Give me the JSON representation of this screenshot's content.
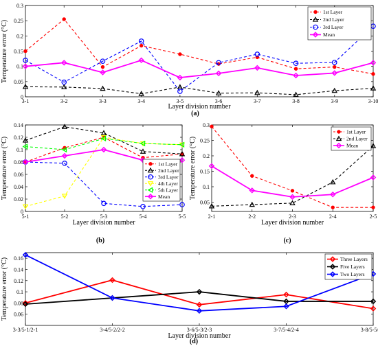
{
  "panel_labels": [
    "(a)",
    "(b)",
    "(c)",
    "(d)"
  ],
  "chart_data": [
    {
      "type": "line",
      "panel": "(a)",
      "xlabel": "Layer division number",
      "ylabel": "Temperature error (°C)",
      "categories": [
        "3-1",
        "3-2",
        "3-3",
        "3-4",
        "3-5",
        "3-6",
        "3-7",
        "3-8",
        "3-9",
        "3-10"
      ],
      "ylim": [
        0,
        0.3
      ],
      "yticks": [
        "0",
        "0.05",
        "0.1",
        "0.15",
        "0.2",
        "0.25",
        "0.3"
      ],
      "grid": false,
      "legend_position": "top-right",
      "series": [
        {
          "name": "1st Layer",
          "color": "#ff0000",
          "dash": "dashed",
          "marker": "dot",
          "values": [
            0.15,
            0.255,
            0.098,
            0.168,
            0.14,
            0.108,
            0.13,
            0.092,
            0.098,
            0.075
          ]
        },
        {
          "name": "2nd Layer",
          "color": "#000000",
          "dash": "dashed",
          "marker": "triangle",
          "values": [
            0.033,
            0.032,
            0.027,
            0.01,
            0.032,
            0.012,
            0.013,
            0.007,
            0.02,
            0.028
          ]
        },
        {
          "name": "3rd Layer",
          "color": "#0000ff",
          "dash": "dashed",
          "marker": "circle",
          "values": [
            0.12,
            0.048,
            0.117,
            0.183,
            0.018,
            0.112,
            0.14,
            0.11,
            0.113,
            0.232
          ]
        },
        {
          "name": "Mean",
          "color": "#ff00ff",
          "dash": "solid",
          "marker": "diamond",
          "values": [
            0.1,
            0.112,
            0.08,
            0.12,
            0.063,
            0.077,
            0.095,
            0.07,
            0.078,
            0.112
          ]
        }
      ]
    },
    {
      "type": "line",
      "panel": "(b)",
      "xlabel": "Layer division number",
      "ylabel": "Temperature error (°C)",
      "categories": [
        "5-1",
        "5-2",
        "5-3",
        "5-4",
        "5-5"
      ],
      "ylim": [
        0,
        0.14
      ],
      "yticks": [
        "0",
        "0.02",
        "0.04",
        "0.06",
        "0.08",
        "0.1",
        "0.12",
        "0.14"
      ],
      "grid": false,
      "legend_position": "right",
      "series": [
        {
          "name": "1st Layer",
          "color": "#ff0000",
          "dash": "dashed",
          "marker": "dot",
          "values": [
            0.08,
            0.103,
            0.12,
            0.087,
            0.093
          ]
        },
        {
          "name": "2nd Layer",
          "color": "#000000",
          "dash": "dashed",
          "marker": "triangle",
          "values": [
            0.115,
            0.137,
            0.127,
            0.097,
            0.093
          ]
        },
        {
          "name": "3rd Layer",
          "color": "#0000ff",
          "dash": "dashed",
          "marker": "circle",
          "values": [
            0.08,
            0.078,
            0.013,
            0.008,
            0.011
          ]
        },
        {
          "name": "4th Layer",
          "color": "#ffff00",
          "dash": "dashed",
          "marker": "triangle-down",
          "values": [
            0.008,
            0.025,
            0.12,
            0.11,
            0.108
          ]
        },
        {
          "name": "5th Layer",
          "color": "#00ff00",
          "dash": "dashed",
          "marker": "triangle-left",
          "values": [
            0.105,
            0.1,
            0.118,
            0.11,
            0.108
          ]
        },
        {
          "name": "Mean",
          "color": "#ff00ff",
          "dash": "solid",
          "marker": "diamond",
          "values": [
            0.08,
            0.09,
            0.1,
            0.083,
            0.083
          ]
        }
      ]
    },
    {
      "type": "line",
      "panel": "(c)",
      "xlabel": "Layer division number",
      "ylabel": "Temperature error (°C)",
      "categories": [
        "2-1",
        "2-2",
        "2-3",
        "2-4",
        "2-5"
      ],
      "ylim": [
        0.02,
        0.3
      ],
      "yticks": [
        "0.05",
        "0.1",
        "0.15",
        "0.2",
        "0.25",
        "0.3"
      ],
      "grid": false,
      "legend_position": "top-right",
      "series": [
        {
          "name": "1st Layer",
          "color": "#ff0000",
          "dash": "dashed",
          "marker": "dot",
          "values": [
            0.295,
            0.135,
            0.087,
            0.033,
            0.033
          ]
        },
        {
          "name": "2nd Layer",
          "color": "#000000",
          "dash": "dashed",
          "marker": "triangle",
          "values": [
            0.037,
            0.042,
            0.047,
            0.115,
            0.232
          ]
        },
        {
          "name": "Mean",
          "color": "#ff00ff",
          "dash": "solid",
          "marker": "diamond",
          "values": [
            0.167,
            0.088,
            0.067,
            0.075,
            0.13
          ]
        }
      ]
    },
    {
      "type": "line",
      "panel": "(d)",
      "xlabel": "Layer division number",
      "ylabel": "Temperature error (°C)",
      "categories": [
        "3-3/5-1/2-1",
        "3-4/5-2/2-2",
        "3-6/5-3/2-3",
        "3-7/5-4/2-4",
        "3-8/5-5/2-5"
      ],
      "ylim": [
        0.04,
        0.17
      ],
      "yticks": [
        "0.06",
        "0.08",
        "0.1",
        "0.12",
        "0.14",
        "0.16"
      ],
      "grid": false,
      "legend_position": "top-right",
      "series": [
        {
          "name": "Three Layers",
          "color": "#ff0000",
          "dash": "solid",
          "marker": "diamond",
          "values": [
            0.08,
            0.121,
            0.077,
            0.095,
            0.07
          ]
        },
        {
          "name": "Five Layers",
          "color": "#000000",
          "dash": "solid",
          "marker": "diamond",
          "values": [
            0.078,
            0.089,
            0.1,
            0.083,
            0.083
          ]
        },
        {
          "name": "Two Layers",
          "color": "#0000ff",
          "dash": "solid",
          "marker": "diamond",
          "values": [
            0.166,
            0.089,
            0.066,
            0.074,
            0.132
          ]
        }
      ]
    }
  ]
}
